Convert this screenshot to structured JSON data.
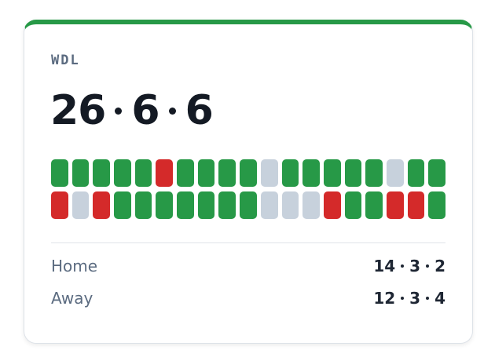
{
  "label": "WDL",
  "score": [
    26,
    6,
    6
  ],
  "results": [
    "W",
    "W",
    "W",
    "W",
    "W",
    "L",
    "W",
    "W",
    "W",
    "W",
    "D",
    "W",
    "W",
    "W",
    "W",
    "W",
    "D",
    "W",
    "W",
    "L",
    "D",
    "L",
    "W",
    "W",
    "W",
    "W",
    "W",
    "W",
    "W",
    "D",
    "D",
    "D",
    "L",
    "W",
    "W",
    "L",
    "L",
    "W"
  ],
  "colors": {
    "W": "#279947",
    "D": "#c7d1dc",
    "L": "#d42a2a",
    "accent": "#279947"
  },
  "splits": [
    {
      "name": "Home",
      "values": [
        14,
        3,
        2
      ]
    },
    {
      "name": "Away",
      "values": [
        12,
        3,
        4
      ]
    }
  ]
}
